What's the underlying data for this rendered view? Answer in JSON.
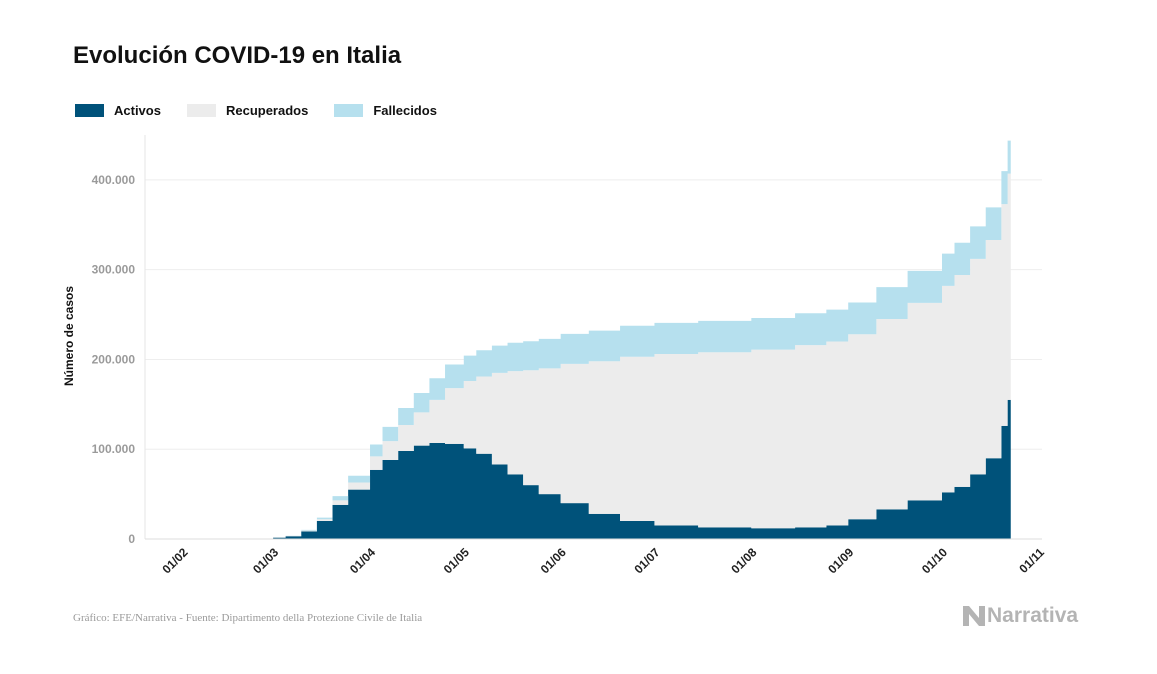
{
  "header": {
    "title": "Evolución COVID-19 en Italia"
  },
  "legend": [
    {
      "label": "Activos",
      "color": "#00527a"
    },
    {
      "label": "Recuperados",
      "color": "#ececec"
    },
    {
      "label": "Fallecidos",
      "color": "#b6e0ee"
    }
  ],
  "footer": {
    "source": "Gráfico: EFE/Narrativa - Fuente: Dipartimento della Protezione Civile de Italia",
    "brand": "Narrativa",
    "brand_icon": "narrativa-logo-icon"
  },
  "chart_data": {
    "type": "area",
    "stacked": true,
    "title": "Evolución COVID-19 en Italia",
    "ylabel": "Número de casos",
    "xlabel": "",
    "ylim": [
      0,
      450000
    ],
    "xlim": [
      "2020-01-20",
      "2020-11-02"
    ],
    "y_ticks": [
      0,
      100000,
      200000,
      300000,
      400000
    ],
    "y_tick_labels": [
      "0",
      "100.000",
      "200.000",
      "300.000",
      "400.000"
    ],
    "x_ticks": [
      "2020-02-01",
      "2020-03-01",
      "2020-04-01",
      "2020-05-01",
      "2020-06-01",
      "2020-07-01",
      "2020-08-01",
      "2020-09-01",
      "2020-10-01",
      "2020-11-01"
    ],
    "x_tick_labels": [
      "01/02",
      "01/03",
      "01/04",
      "01/05",
      "01/06",
      "01/07",
      "01/08",
      "01/09",
      "01/10",
      "01/11"
    ],
    "grid": "horizontal",
    "legend_position": "top-left",
    "x": [
      "2020-02-01",
      "2020-02-20",
      "2020-02-24",
      "2020-03-01",
      "2020-03-05",
      "2020-03-10",
      "2020-03-15",
      "2020-03-20",
      "2020-03-25",
      "2020-04-01",
      "2020-04-05",
      "2020-04-10",
      "2020-04-15",
      "2020-04-20",
      "2020-04-25",
      "2020-05-01",
      "2020-05-05",
      "2020-05-10",
      "2020-05-15",
      "2020-05-20",
      "2020-05-25",
      "2020-06-01",
      "2020-06-10",
      "2020-06-20",
      "2020-07-01",
      "2020-07-15",
      "2020-08-01",
      "2020-08-15",
      "2020-08-25",
      "2020-09-01",
      "2020-09-10",
      "2020-09-20",
      "2020-10-01",
      "2020-10-05",
      "2020-10-10",
      "2020-10-15",
      "2020-10-20",
      "2020-10-22"
    ],
    "series": [
      {
        "name": "Activos",
        "values": [
          0,
          0,
          200,
          1500,
          3000,
          8500,
          20000,
          38000,
          55000,
          77000,
          88000,
          98000,
          104000,
          107000,
          106000,
          101000,
          95000,
          83000,
          72000,
          60000,
          50000,
          40000,
          28000,
          20000,
          15000,
          13000,
          12000,
          13000,
          15000,
          22000,
          33000,
          43000,
          52000,
          58000,
          72000,
          90000,
          126000,
          155000
        ]
      },
      {
        "name": "Recuperados",
        "values": [
          0,
          0,
          0,
          100,
          500,
          1000,
          2000,
          5000,
          8000,
          15000,
          21000,
          29000,
          37000,
          48000,
          62000,
          75000,
          86000,
          102000,
          115000,
          128000,
          140000,
          155000,
          170000,
          183000,
          191000,
          195000,
          199000,
          203000,
          205000,
          206000,
          212000,
          220000,
          230000,
          236000,
          240000,
          243000,
          247000,
          252000
        ]
      },
      {
        "name": "Fallecidos",
        "values": [
          0,
          0,
          5,
          30,
          150,
          630,
          1800,
          4800,
          7500,
          13200,
          15900,
          18900,
          21600,
          24100,
          26400,
          28200,
          29300,
          30400,
          31600,
          32300,
          32900,
          33500,
          34100,
          34600,
          34800,
          35000,
          35200,
          35400,
          35500,
          35500,
          35600,
          35700,
          35900,
          36000,
          36200,
          36400,
          36700,
          36800
        ]
      }
    ]
  }
}
